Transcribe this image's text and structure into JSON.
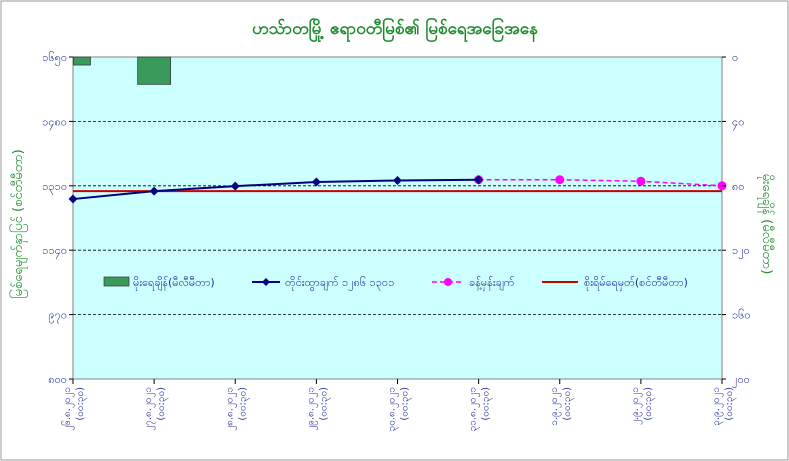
{
  "chart_data": {
    "type": "line",
    "title": "ဟသ်ာတမြို့ ဧရာဝတီမြစ်၏ မြစ်ရေအခြေအနေ",
    "ylabel": "မြစ်ရေမျက်နှာပြင် (စင်တီမီတာ)",
    "y2label": "မိုးရေချိန် (မီလီမီတာ)",
    "categories": [
      [
        "၂၆.၈.၂၀၂၁",
        "(၀၀:၃၀)"
      ],
      [
        "၂၇.၈.၂၀၂၁",
        "(၀၀:၃၀)"
      ],
      [
        "၂၈.၈.၂၀၂၁",
        "(၀၀:၃၀)"
      ],
      [
        "၂၉.၈.၂၀၂၁",
        "(၀၀:၃၀)"
      ],
      [
        "၃၀.၈.၂၀၂၁",
        "(၀၀:၃၀)"
      ],
      [
        "၃၁.၈.၂၀၂၁",
        "(၀၀:၃၀)"
      ],
      [
        "၁.၉.၂၀၂၁",
        "(၀၀:၃၀)"
      ],
      [
        "၂.၉.၂၀၂၁",
        "(၀၀:၃၀)"
      ],
      [
        "၃.၉.၂၀၂၁",
        "(၀၀:၃၀)"
      ]
    ],
    "ylim": [
      800,
      1650
    ],
    "y_ticks": [
      {
        "value": 800,
        "label": "၈၀၀"
      },
      {
        "value": 970,
        "label": "၉၇၀"
      },
      {
        "value": 1140,
        "label": "၁၁၄၀"
      },
      {
        "value": 1310,
        "label": "၁၃၁၀"
      },
      {
        "value": 1480,
        "label": "၁၄၈၀"
      },
      {
        "value": 1650,
        "label": "၁၆၅၀"
      }
    ],
    "y2lim": [
      0,
      200
    ],
    "y2_inverted": true,
    "y2_ticks": [
      {
        "value": 0,
        "label": "၀"
      },
      {
        "value": 40,
        "label": "၄၀"
      },
      {
        "value": 80,
        "label": "၈၀"
      },
      {
        "value": 120,
        "label": "၁၂၀"
      },
      {
        "value": 160,
        "label": "၁၆၀"
      },
      {
        "value": 200,
        "label": "၂၀၀"
      }
    ],
    "gridlines": true,
    "rainfall": {
      "name": "မိုးရေချိန်(မီလီမီတာ)",
      "color": "#3a9a5c",
      "values": [
        5,
        17,
        0,
        0,
        0,
        0,
        0,
        0,
        0
      ]
    },
    "observed": {
      "name": "တိုင်းထွာချက် ၁၂၈၆ ၁၃၀၁",
      "color": "#000080",
      "values": [
        1275,
        1296,
        1309,
        1320,
        1324,
        1326
      ]
    },
    "forecast": {
      "name": "ခန့်မှန်းချက်",
      "color": "#ff00ff",
      "values": [
        null,
        null,
        null,
        null,
        null,
        1326,
        1326,
        1322,
        1310
      ]
    },
    "danger_level": {
      "name": "စိုးရိမ်ရေမှတ်(စင်တီမီတာ)",
      "color": "#cc0000",
      "value": 1296
    },
    "legend_placement": "center"
  }
}
